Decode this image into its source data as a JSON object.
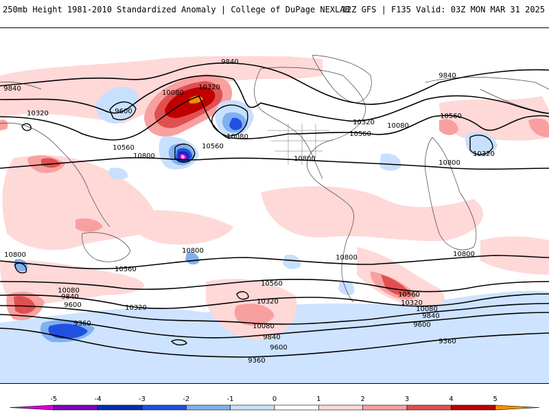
{
  "header": {
    "title": "250mb Height 1981-2010 Standardized Anomaly | College of DuPage NEXLAB",
    "run_info": "12Z GFS | F135 Valid: 03Z MON MAR 31 2025"
  },
  "contour_labels": [
    "9840",
    "9840",
    "10080",
    "10320",
    "9600",
    "10320",
    "10560",
    "10800",
    "10560",
    "10080",
    "10320",
    "10560",
    "10080",
    "10560",
    "10320",
    "9840",
    "10800",
    "10800",
    "10800",
    "10560",
    "10800",
    "10800",
    "10800",
    "10560",
    "10080",
    "9840",
    "9600",
    "10320",
    "10320",
    "10560",
    "10320",
    "10080",
    "9840",
    "9600",
    "10080",
    "9840",
    "9600",
    "9360",
    "9360",
    "9360"
  ],
  "colorbar": {
    "tick_labels": [
      "-5",
      "-4",
      "-3",
      "-2",
      "-1",
      "0",
      "1",
      "2",
      "3",
      "4",
      "5"
    ],
    "colors": [
      "#d000d0",
      "#8000c0",
      "#0030b0",
      "#2050e0",
      "#80b0f0",
      "#c8e0ff",
      "#ffffff",
      "#ffd8d8",
      "#f8a0a0",
      "#e05050",
      "#c00000",
      "#f09000"
    ]
  }
}
